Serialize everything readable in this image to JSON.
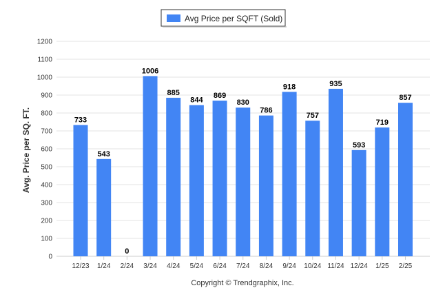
{
  "chart_data": {
    "type": "bar",
    "title": "",
    "xlabel": "",
    "ylabel": "Avg. Price per SQ. FT.",
    "ylim": [
      0,
      1200
    ],
    "yticks": [
      0,
      100,
      200,
      300,
      400,
      500,
      600,
      700,
      800,
      900,
      1000,
      1100,
      1200
    ],
    "grid": true,
    "legend_position": "top-center",
    "categories": [
      "12/23",
      "1/24",
      "2/24",
      "3/24",
      "4/24",
      "5/24",
      "6/24",
      "7/24",
      "8/24",
      "9/24",
      "10/24",
      "11/24",
      "12/24",
      "1/25",
      "2/25"
    ],
    "series": [
      {
        "name": "Avg Price per SQFT (Sold)",
        "color": "#4285f4",
        "values": [
          733,
          543,
          0,
          1006,
          885,
          844,
          869,
          830,
          786,
          918,
          757,
          935,
          593,
          719,
          857
        ]
      }
    ]
  },
  "footer": {
    "copyright": "Copyright © Trendgraphix, Inc."
  }
}
